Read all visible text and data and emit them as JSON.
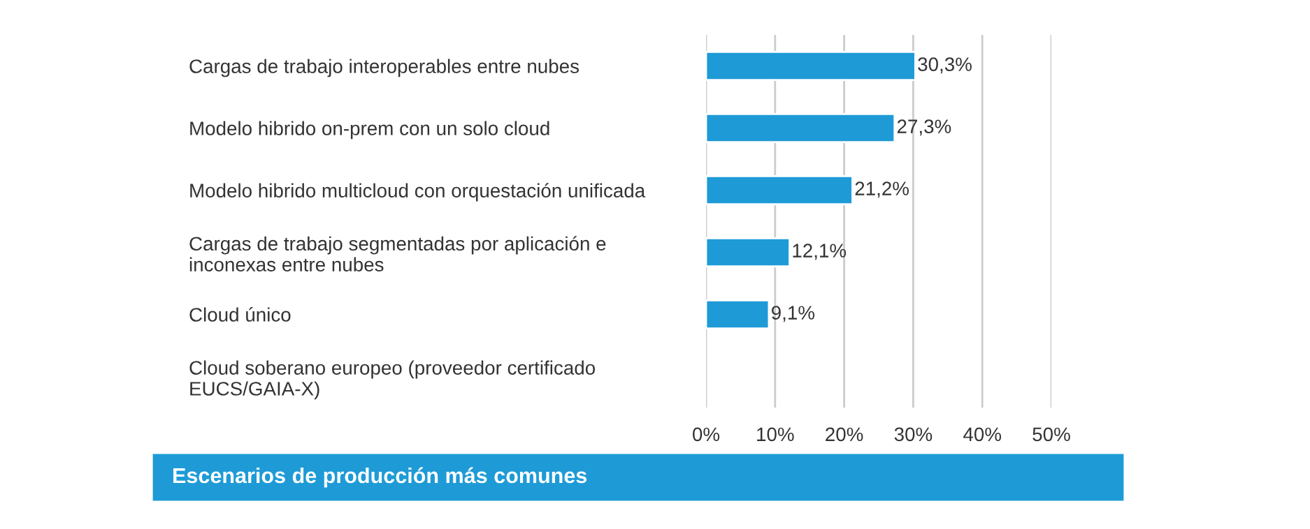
{
  "chart_data": {
    "type": "bar",
    "orientation": "horizontal",
    "title": "Escenarios de producción más comunes",
    "categories": [
      "Cargas de trabajo interoperables entre nubes",
      "Modelo hibrido on-prem con un solo cloud",
      "Modelo hibrido multicloud con orquestación unificada",
      "Cargas de trabajo segmentadas por aplicación e\ninconexas entre nubes",
      "Cloud único",
      "Cloud soberano europeo (proveedor certificado\nEUCS/GAIA-X)"
    ],
    "values": [
      30.3,
      27.3,
      21.2,
      12.1,
      9.1,
      null
    ],
    "value_labels": [
      "30,3%",
      "27,3%",
      "21,2%",
      "12,1%",
      "9,1%",
      null
    ],
    "color": "#1e9bd7",
    "xlim": [
      0,
      50
    ],
    "xticks": [
      {
        "value": 0,
        "label": "0%"
      },
      {
        "value": 10,
        "label": "10%"
      },
      {
        "value": 20,
        "label": "20%"
      },
      {
        "value": 30,
        "label": "30%"
      },
      {
        "value": 40,
        "label": "40%"
      },
      {
        "value": 50,
        "label": "50%"
      }
    ],
    "grid": "x",
    "legend": false
  }
}
